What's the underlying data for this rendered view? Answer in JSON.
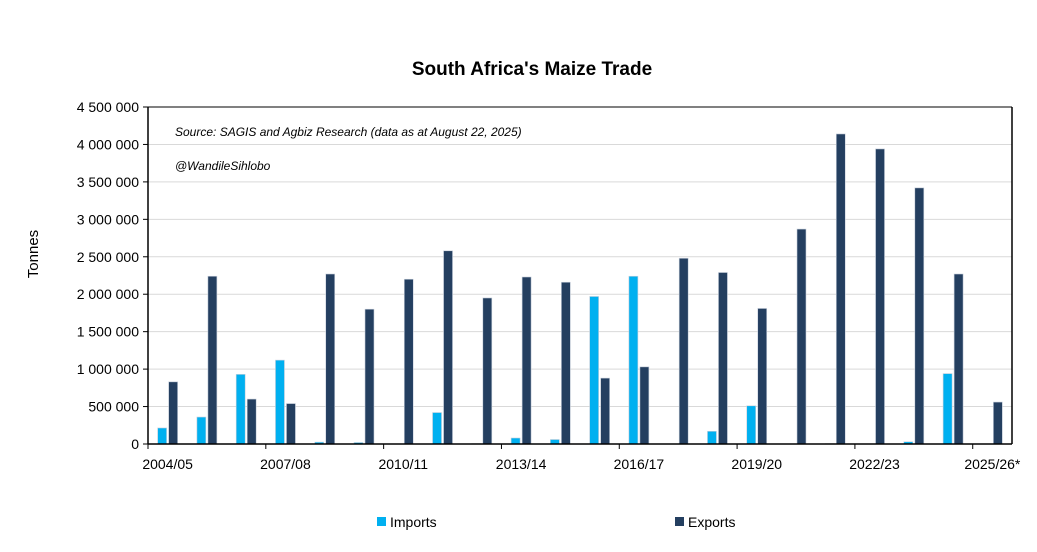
{
  "chart_data": {
    "type": "bar",
    "title": "South Africa's Maize Trade",
    "ylabel": "Tonnes",
    "xlabel": "",
    "ylim": [
      0,
      4500000
    ],
    "yticks": [
      0,
      500000,
      1000000,
      1500000,
      2000000,
      2500000,
      3000000,
      3500000,
      4000000,
      4500000
    ],
    "ytick_labels": [
      "0",
      "500 000",
      "1 000 000",
      "1 500 000",
      "2 000 000",
      "2 500 000",
      "3 000 000",
      "3 500 000",
      "4 000 000",
      "4 500 000"
    ],
    "grid": true,
    "legend_position": "bottom",
    "annotations": [
      "Source: SAGIS and Agbiz Research (data as at August 22, 2025)",
      "@WandileSihlobo"
    ],
    "categories": [
      "2004/05",
      "2005/06",
      "2006/07",
      "2007/08",
      "2008/09",
      "2009/10",
      "2010/11",
      "2011/12",
      "2012/13",
      "2013/14",
      "2014/15",
      "2015/16",
      "2016/17",
      "2017/18",
      "2018/19",
      "2019/20",
      "2020/21",
      "2021/22",
      "2022/23",
      "2023/24",
      "2024/25",
      "2025/26*"
    ],
    "shown_xtick_labels": [
      "2004/05",
      "2007/08",
      "2010/11",
      "2013/14",
      "2016/17",
      "2019/20",
      "2022/23",
      "2025/26*"
    ],
    "series": [
      {
        "name": "Imports",
        "color": "#00B0F0",
        "values": [
          214000,
          360000,
          930000,
          1120000,
          25000,
          20000,
          0,
          420000,
          5000,
          80000,
          60000,
          1970000,
          2240000,
          0,
          170000,
          510000,
          0,
          5000,
          0,
          30000,
          940000,
          0
        ]
      },
      {
        "name": "Exports",
        "color": "#243F60",
        "values": [
          830000,
          2240000,
          600000,
          540000,
          2270000,
          1800000,
          2200000,
          2580000,
          1950000,
          2230000,
          2160000,
          880000,
          1030000,
          2480000,
          2290000,
          1810000,
          2870000,
          4140000,
          3940000,
          3420000,
          2270000,
          560000
        ]
      }
    ]
  }
}
